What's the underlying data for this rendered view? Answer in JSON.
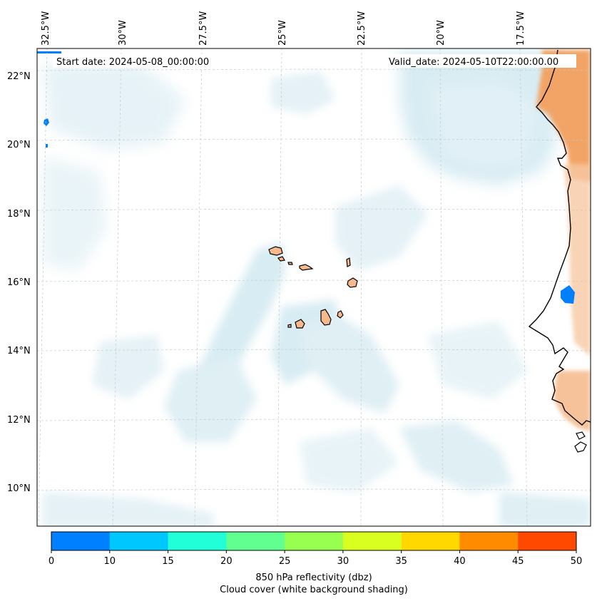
{
  "map": {
    "start_date": "Start date: 2024-05-08_00:00:00",
    "valid_date": "Valid_date: 2024-05-10T22:00:00.00",
    "lon_labels": [
      "32.5°W",
      "30°W",
      "27.5°W",
      "25°W",
      "22.5°W",
      "20°W",
      "17.5°W"
    ],
    "lat_labels": [
      "22°N",
      "20°N",
      "18°N",
      "16°N",
      "14°N",
      "12°N",
      "10°N"
    ],
    "gridlines": true,
    "background": "cloud cover shading",
    "colors": {
      "land_warm": "#f4a76a",
      "cloud_shade": "#a8d5e5",
      "reflectivity_low": "#0080ff"
    }
  },
  "colorbar": {
    "ticks": [
      "0",
      "10",
      "15",
      "20",
      "25",
      "30",
      "35",
      "40",
      "45",
      "50"
    ],
    "colors": [
      "#0080ff",
      "#00c8ff",
      "#20ffd8",
      "#60ff90",
      "#98ff50",
      "#d8ff20",
      "#ffd800",
      "#ff8c00",
      "#ff4800"
    ],
    "label_line1": "850 hPa reflectivity (dbz)",
    "label_line2": "Cloud cover (white background shading)"
  }
}
